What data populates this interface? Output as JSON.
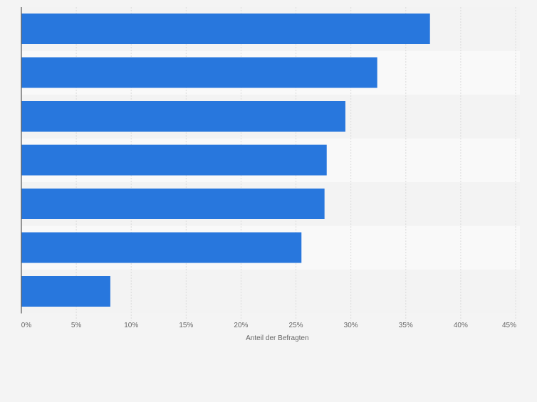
{
  "chart_data": {
    "type": "bar",
    "orientation": "horizontal",
    "categories": [
      "",
      "",
      "",
      "",
      "",
      "",
      ""
    ],
    "values": [
      37.2,
      32.4,
      29.5,
      27.8,
      27.6,
      25.5,
      8.1
    ],
    "xlabel": "Anteil der Befragten",
    "ylabel": "",
    "xlim": [
      0,
      45
    ],
    "tick_values": [
      0,
      5,
      10,
      15,
      20,
      25,
      30,
      35,
      40,
      45
    ],
    "tick_labels": [
      "0%",
      "5%",
      "10%",
      "15%",
      "20%",
      "25%",
      "30%",
      "35%",
      "40%",
      "45%"
    ],
    "grid": true,
    "legend": "none"
  },
  "colors": {
    "bar": "#2877dd",
    "band_light": "#f9f9f9",
    "band_dark": "#f3f3f3",
    "grid": "#dcdcdc",
    "axis": "#555555",
    "tick_text": "#666666"
  }
}
